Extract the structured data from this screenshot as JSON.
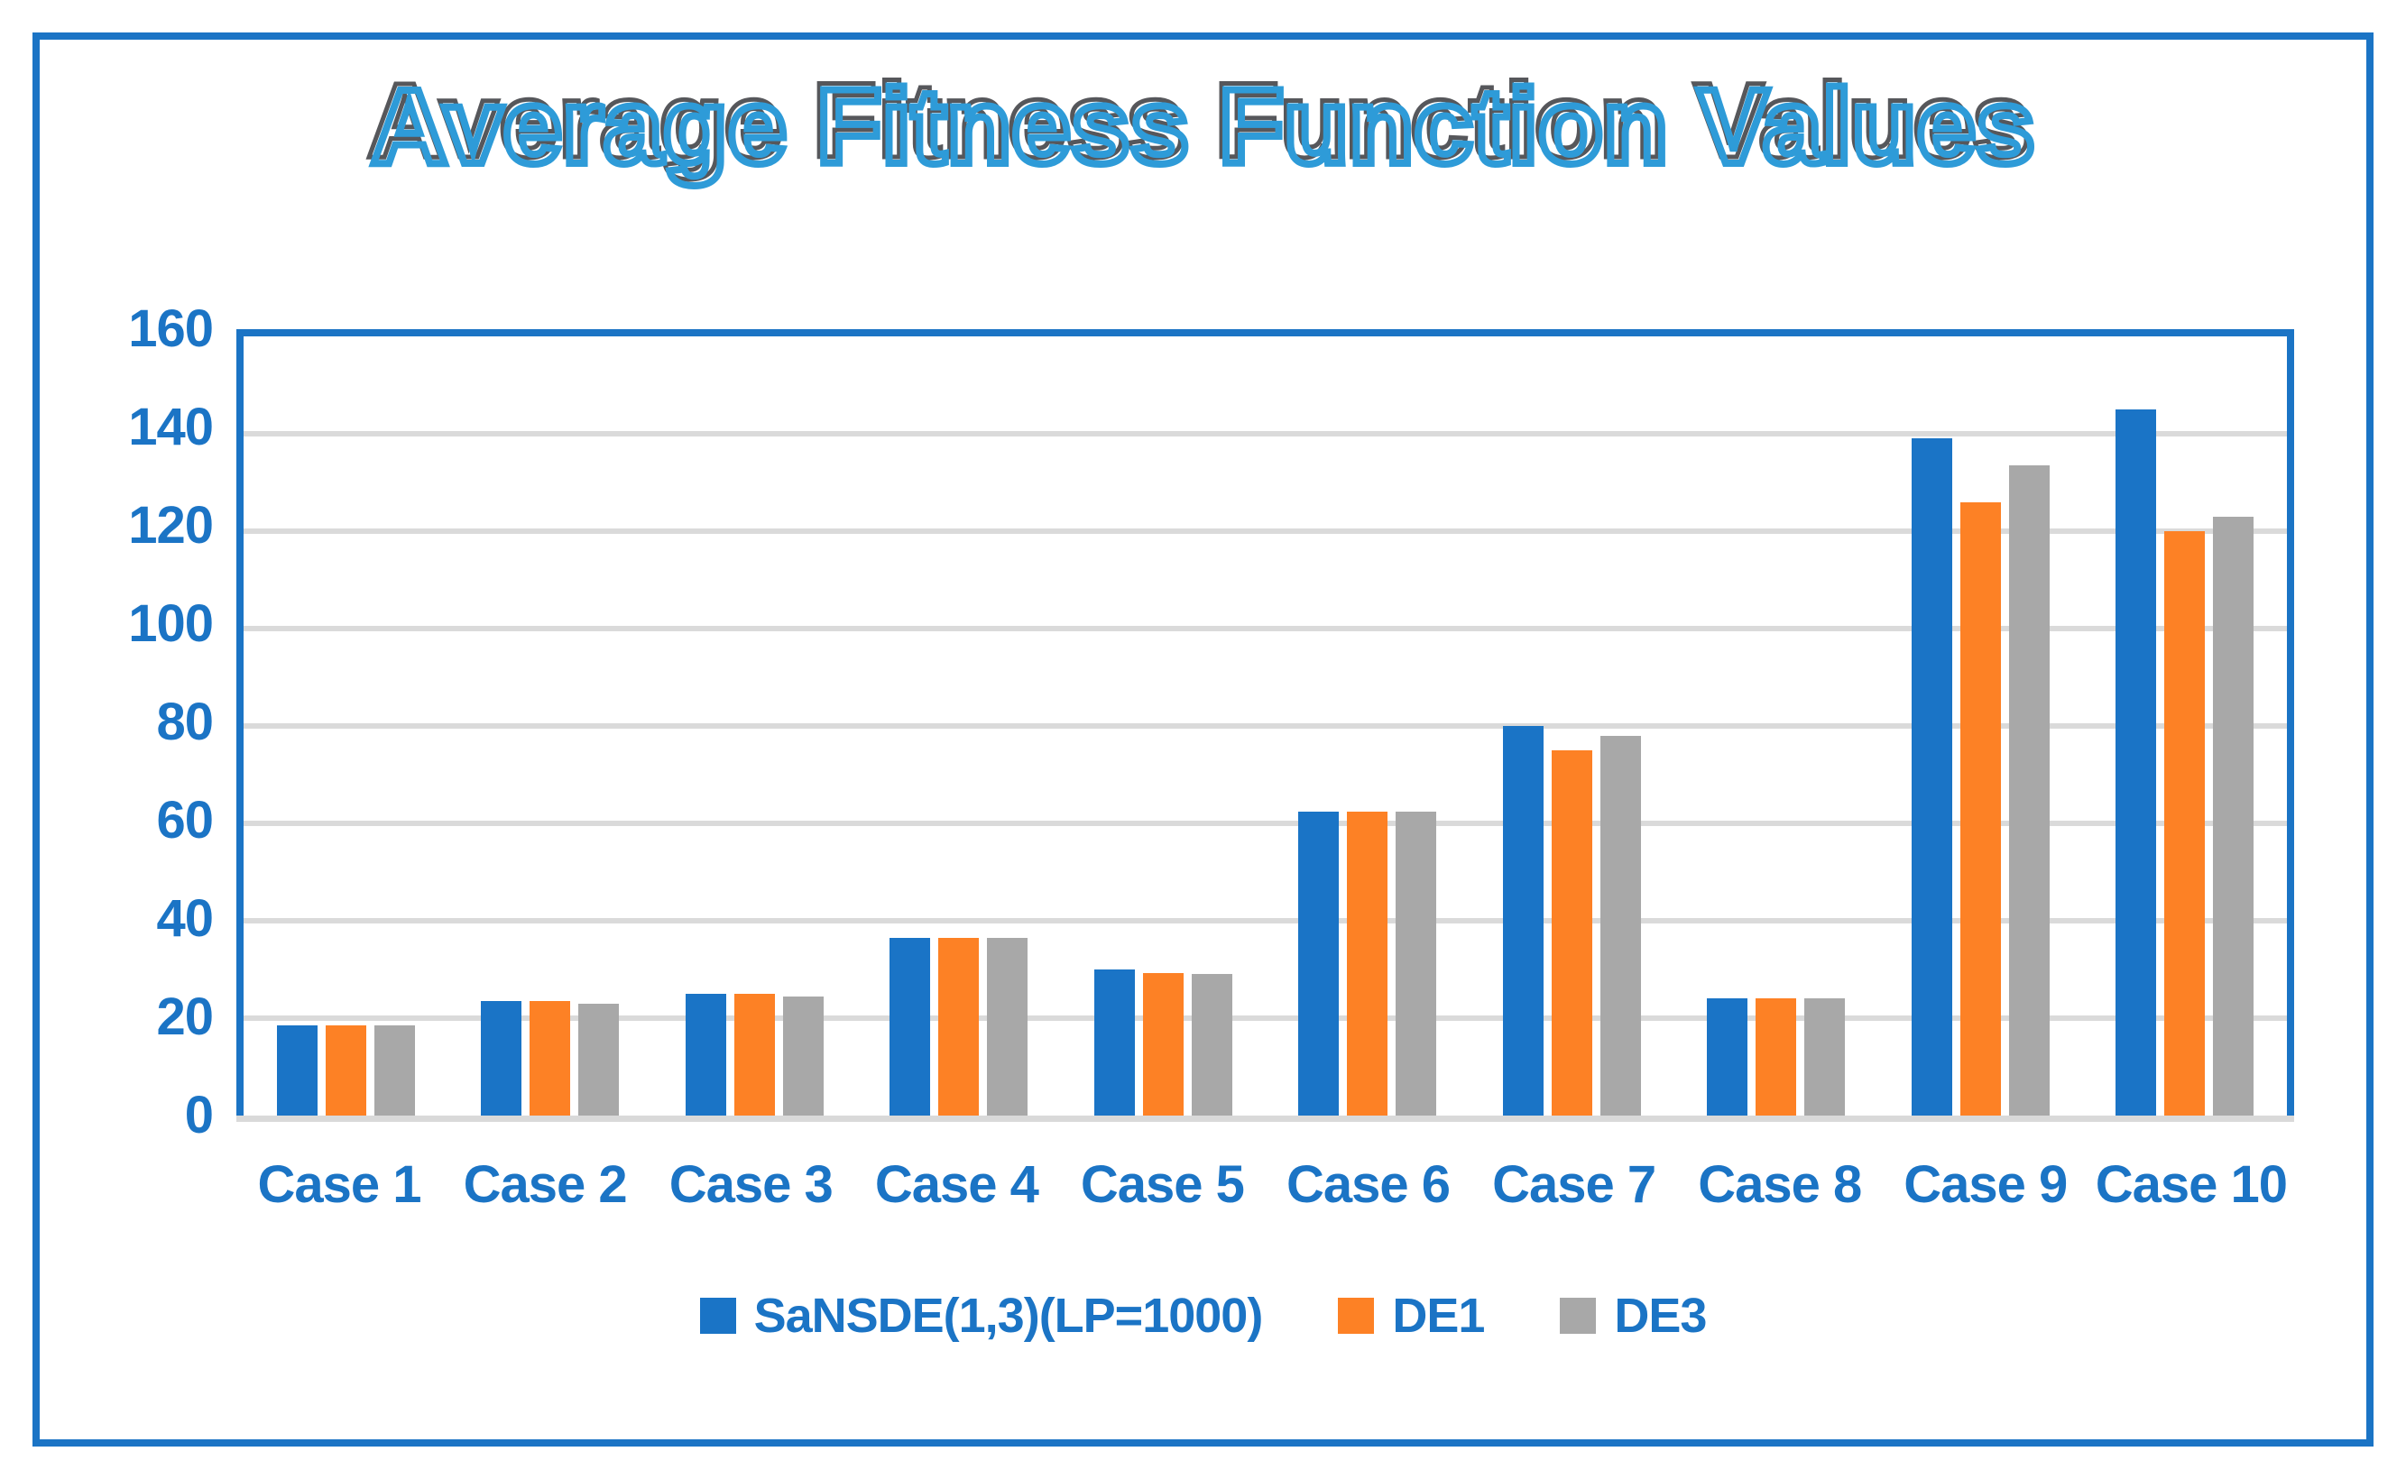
{
  "title": "Average Fitness Function Values",
  "colors": {
    "frame_blue": "#1B74C5",
    "axis_label_blue": "#1B74C5",
    "title_fill_blue": "#2E9BD8",
    "title_outline_gray": "#56575B",
    "gridline_gray": "#DADADA",
    "bar_blue": "#1A74C6",
    "bar_orange": "#FD8125",
    "bar_gray": "#A8A8A8"
  },
  "chart_data": {
    "type": "bar",
    "title": "Average Fitness Function Values",
    "categories": [
      "Case 1",
      "Case 2",
      "Case 3",
      "Case 4",
      "Case 5",
      "Case 6",
      "Case 7",
      "Case 8",
      "Case 9",
      "Case 10"
    ],
    "series": [
      {
        "name": "SaNSDE(1,3)(LP=1000)",
        "color": "#1A74C6",
        "values": [
          18.5,
          23.5,
          25,
          36.5,
          30,
          62.5,
          80,
          24,
          139,
          145
        ]
      },
      {
        "name": "DE1",
        "color": "#FD8125",
        "values": [
          18.5,
          23.5,
          25,
          36.5,
          29.3,
          62.5,
          75,
          24,
          126,
          120
        ]
      },
      {
        "name": "DE3",
        "color": "#A8A8A8",
        "values": [
          18.5,
          23,
          24.5,
          36.5,
          29,
          62.5,
          78,
          24,
          133.5,
          123
        ]
      }
    ],
    "xlabel": "",
    "ylabel": "",
    "ylim": [
      0,
      160
    ],
    "yticks": [
      0,
      20,
      40,
      60,
      80,
      100,
      120,
      140,
      160
    ],
    "grid": true,
    "legend_position": "bottom"
  }
}
